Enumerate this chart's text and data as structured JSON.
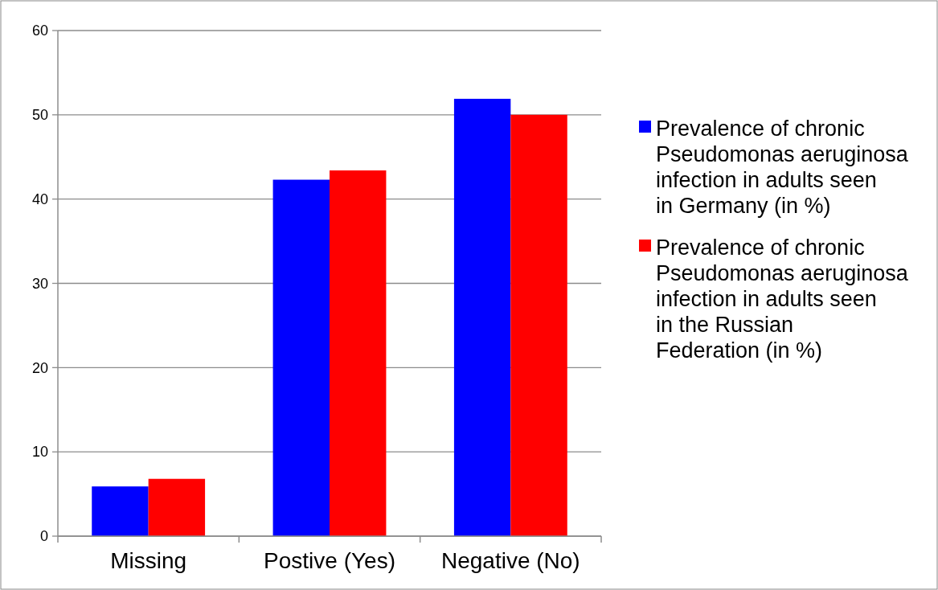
{
  "chart_data": {
    "type": "bar",
    "categories": [
      "Missing",
      "Postive (Yes)",
      "Negative (No)"
    ],
    "series": [
      {
        "name": "Prevalence of chronic Pseudomonas aeruginosa infection in adults seen in Germany (in %)",
        "color": "#0000ff",
        "values": [
          5.9,
          42.3,
          51.9
        ]
      },
      {
        "name": "Prevalence of chronic Pseudomonas aeruginosa infection in adults seen in the Russian Federation (in %)",
        "color": "#ff0000",
        "values": [
          6.8,
          43.4,
          50.0
        ]
      }
    ],
    "ylim": [
      0,
      60
    ],
    "yticks": [
      0,
      10,
      20,
      30,
      40,
      50,
      60
    ],
    "grid": "y",
    "legend": "right"
  }
}
